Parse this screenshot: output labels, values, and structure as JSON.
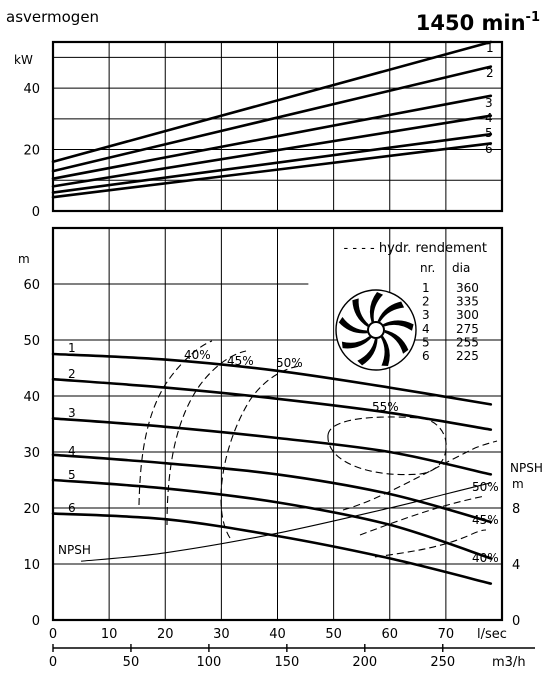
{
  "chart_data": {
    "type": "line",
    "speed_label": "1450 min",
    "speed_exp": "-1",
    "power_panel": {
      "title": "asvermogen",
      "ylabel": "kW",
      "ylim": [
        0,
        55
      ],
      "yticks": [
        0,
        20,
        40
      ],
      "xlim": [
        0,
        80
      ],
      "series": [
        {
          "name": "1",
          "x": [
            0,
            78
          ],
          "y": [
            16,
            55
          ]
        },
        {
          "name": "2",
          "x": [
            0,
            78
          ],
          "y": [
            13,
            47
          ]
        },
        {
          "name": "3",
          "x": [
            0,
            78
          ],
          "y": [
            10.5,
            37.5
          ]
        },
        {
          "name": "4",
          "x": [
            0,
            78
          ],
          "y": [
            8,
            31
          ]
        },
        {
          "name": "5",
          "x": [
            0,
            78
          ],
          "y": [
            6,
            25
          ]
        },
        {
          "name": "6",
          "x": [
            0,
            78
          ],
          "y": [
            4.5,
            22
          ]
        }
      ]
    },
    "head_panel": {
      "ylabel": "m",
      "ylim": [
        0,
        70
      ],
      "yticks": [
        0,
        10,
        20,
        30,
        40,
        50,
        60
      ],
      "xlim": [
        0,
        80
      ],
      "xticks_lsec": [
        0,
        10,
        20,
        30,
        40,
        50,
        60,
        70
      ],
      "xlabel_lsec": "l/sec",
      "xticks_m3h": [
        0,
        50,
        100,
        150,
        200,
        250
      ],
      "xlabel_m3h": "m3/h",
      "npsh_axis_label": "NPSH",
      "npsh_axis_unit": "m",
      "npsh_ticks": [
        0,
        4,
        8
      ],
      "legend_title": "- - - - hydr. rendement",
      "table_header": [
        "nr.",
        "dia"
      ],
      "impellers": [
        {
          "nr": "1",
          "dia": "360"
        },
        {
          "nr": "2",
          "dia": "335"
        },
        {
          "nr": "3",
          "dia": "300"
        },
        {
          "nr": "4",
          "dia": "275"
        },
        {
          "nr": "5",
          "dia": "255"
        },
        {
          "nr": "6",
          "dia": "225"
        }
      ],
      "series": [
        {
          "name": "1",
          "x": [
            0,
            20,
            40,
            60,
            78
          ],
          "y": [
            47.5,
            46.5,
            44.5,
            41.5,
            38.5
          ]
        },
        {
          "name": "2",
          "x": [
            0,
            20,
            40,
            60,
            78
          ],
          "y": [
            43,
            41.5,
            39.5,
            37,
            34
          ]
        },
        {
          "name": "3",
          "x": [
            0,
            20,
            40,
            60,
            78
          ],
          "y": [
            36,
            34.5,
            32.5,
            30,
            26
          ]
        },
        {
          "name": "4",
          "x": [
            0,
            20,
            40,
            60,
            78
          ],
          "y": [
            29.5,
            28,
            26,
            22.5,
            17.5
          ]
        },
        {
          "name": "5",
          "x": [
            0,
            20,
            40,
            60,
            78
          ],
          "y": [
            25,
            23.5,
            21,
            17,
            11
          ]
        },
        {
          "name": "6",
          "x": [
            0,
            20,
            40,
            60,
            78
          ],
          "y": [
            19,
            18,
            15,
            11,
            6.5
          ]
        }
      ],
      "npsh_curve": {
        "name": "NPSH",
        "x": [
          5,
          20,
          40,
          60,
          70,
          78
        ],
        "y": [
          10.5,
          12,
          15.5,
          20,
          22.5,
          24.5
        ]
      },
      "efficiency_labels": [
        "40%",
        "45%",
        "50%",
        "55%",
        "50%",
        "45%",
        "40%"
      ]
    }
  }
}
